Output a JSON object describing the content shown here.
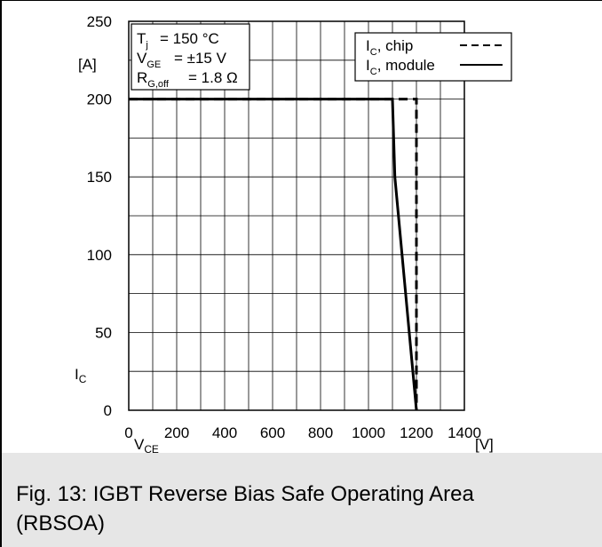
{
  "chart_data": {
    "type": "line",
    "title": "",
    "xlabel": "V_CE",
    "xunit": "[V]",
    "ylabel": "I_C",
    "yunit": "[A]",
    "xlim": [
      0,
      1400
    ],
    "ylim": [
      0,
      250
    ],
    "xticks": [
      0,
      200,
      400,
      600,
      800,
      1000,
      1200,
      1400
    ],
    "yticks": [
      0,
      50,
      100,
      150,
      200,
      250
    ],
    "grid": true,
    "legend_position": "top-right",
    "conditions": [
      {
        "symbol": "T",
        "sub": "j",
        "value": "= 150 °C"
      },
      {
        "symbol": "V",
        "sub": "GE",
        "value": "= ±15 V"
      },
      {
        "symbol": "R",
        "sub": "G,off",
        "value": "= 1.8 Ω"
      }
    ],
    "series": [
      {
        "name": "I_C, chip",
        "legend_main": "I",
        "legend_sub": "C",
        "legend_rest": ", chip",
        "style": "dashed",
        "x": [
          0,
          1200,
          1200
        ],
        "y": [
          200,
          200,
          0
        ]
      },
      {
        "name": "I_C, module",
        "legend_main": "I",
        "legend_sub": "C",
        "legend_rest": ", module",
        "style": "solid",
        "x": [
          0,
          1100,
          1110,
          1200
        ],
        "y": [
          200,
          200,
          150,
          0
        ]
      }
    ]
  },
  "caption": "Fig. 13: IGBT Reverse Bias Safe Operating Area (RBSOA)"
}
